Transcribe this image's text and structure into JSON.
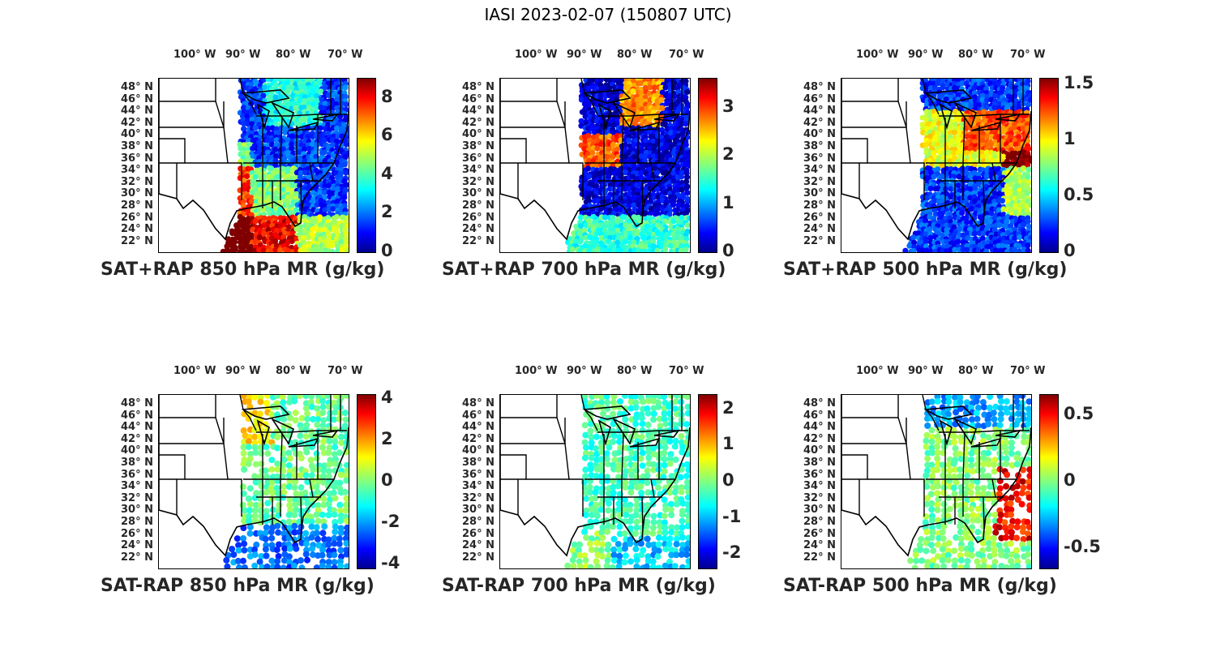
{
  "figure_title": "IASI 2023-02-07 (150807 UTC)",
  "lon_labels": [
    "100° W",
    "90° W",
    "80° W",
    "70° W"
  ],
  "lat_labels": [
    "48° N",
    "46° N",
    "44° N",
    "42° N",
    "40° N",
    "38° N",
    "36° N",
    "34° N",
    "32° N",
    "30° N",
    "28° N",
    "26° N",
    "24° N",
    "22° N"
  ],
  "colormap": "jet",
  "panels": [
    {
      "title": "SAT+RAP 850 hPa MR (g/kg)",
      "cbar_range": [
        0,
        9.0
      ],
      "cbar_ticks": [
        "0",
        "2",
        "4",
        "6",
        "8"
      ],
      "cbar_values": [
        0,
        2,
        4,
        6,
        8
      ]
    },
    {
      "title": "SAT+RAP 700 hPa MR (g/kg)",
      "cbar_range": [
        0,
        3.6
      ],
      "cbar_ticks": [
        "0",
        "1",
        "2",
        "3"
      ],
      "cbar_values": [
        0,
        1,
        2,
        3
      ]
    },
    {
      "title": "SAT+RAP 500 hPa MR (g/kg)",
      "cbar_range": [
        0,
        1.55
      ],
      "cbar_ticks": [
        "0",
        "0.5",
        "1",
        "1.5"
      ],
      "cbar_values": [
        0,
        0.5,
        1,
        1.5
      ]
    },
    {
      "title": "SAT-RAP 850 hPa MR (g/kg)",
      "cbar_range": [
        -4.2,
        4.2
      ],
      "cbar_ticks": [
        "-4",
        "-2",
        "0",
        "2",
        "4"
      ],
      "cbar_values": [
        -4,
        -2,
        0,
        2,
        4
      ]
    },
    {
      "title": "SAT-RAP 700 hPa MR (g/kg)",
      "cbar_range": [
        -2.4,
        2.4
      ],
      "cbar_ticks": [
        "-2",
        "-1",
        "0",
        "1",
        "2"
      ],
      "cbar_values": [
        -2,
        -1,
        0,
        1,
        2
      ]
    },
    {
      "title": "SAT-RAP 500 hPa MR (g/kg)",
      "cbar_range": [
        -0.65,
        0.65
      ],
      "cbar_ticks": [
        "-0.5",
        "0",
        "0.5"
      ],
      "cbar_values": [
        -0.5,
        0,
        0.5
      ]
    }
  ]
}
